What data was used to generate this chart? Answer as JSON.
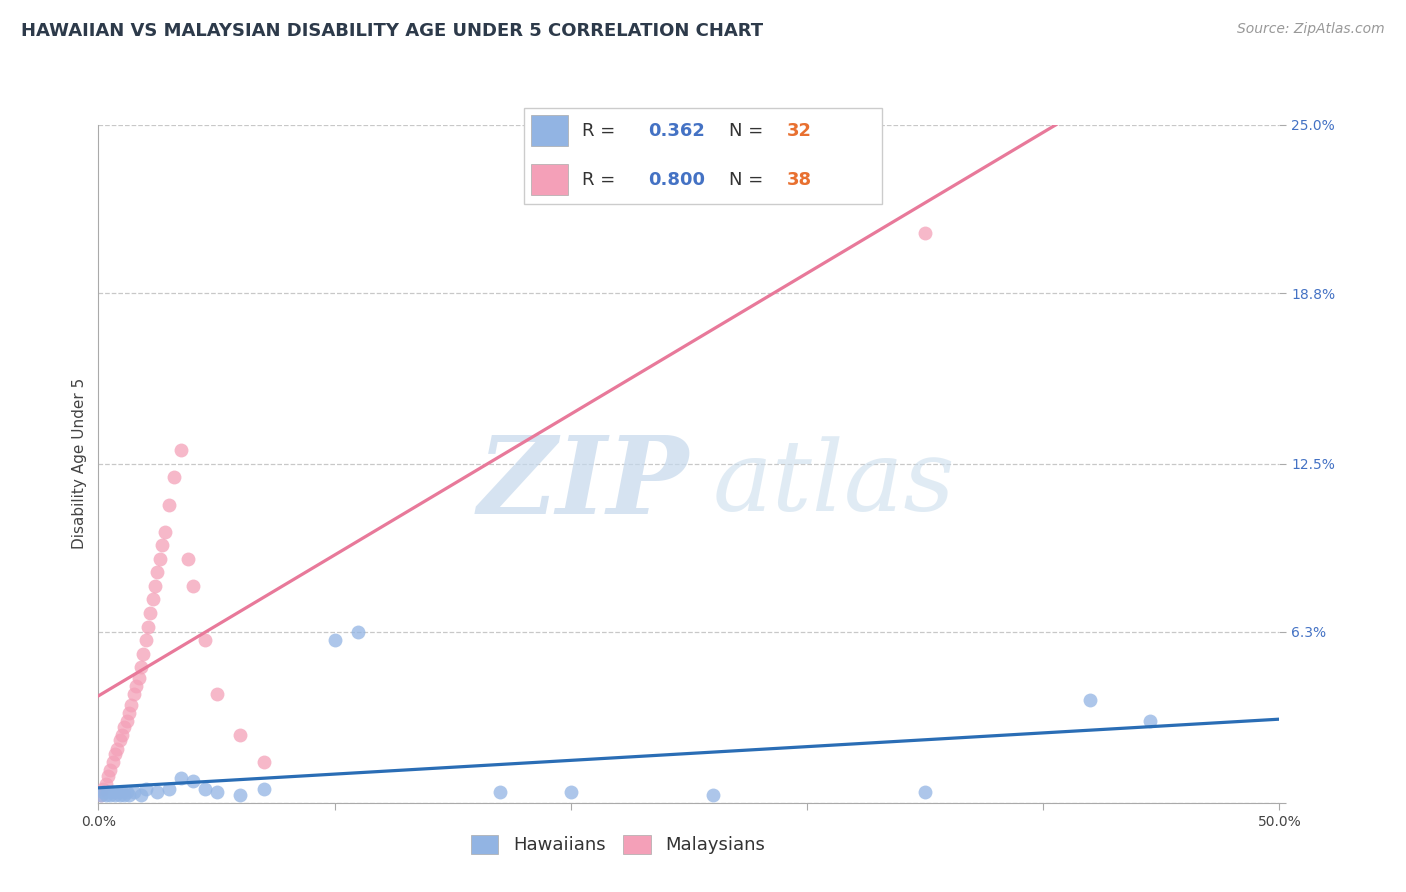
{
  "title": "HAWAIIAN VS MALAYSIAN DISABILITY AGE UNDER 5 CORRELATION CHART",
  "source": "Source: ZipAtlas.com",
  "ylabel": "Disability Age Under 5",
  "xlim": [
    0.0,
    0.5
  ],
  "ylim": [
    0.0,
    0.25
  ],
  "xtick_vals": [
    0.0,
    0.1,
    0.2,
    0.3,
    0.4,
    0.5
  ],
  "xtick_labels": [
    "0.0%",
    "",
    "",
    "",
    "",
    "50.0%"
  ],
  "ytick_vals": [
    0.0,
    0.063,
    0.125,
    0.188,
    0.25
  ],
  "ytick_labels": [
    "",
    "6.3%",
    "12.5%",
    "18.8%",
    "25.0%"
  ],
  "hawaiian_R": 0.362,
  "hawaiian_N": 32,
  "malaysian_R": 0.8,
  "malaysian_N": 38,
  "hawaiian_color": "#92b4e3",
  "malaysian_color": "#f4a0b8",
  "hawaiian_line_color": "#2a6db5",
  "malaysian_line_color": "#e8799a",
  "bg_color": "#ffffff",
  "grid_color": "#c8c8c8",
  "watermark_zip_color": "#c8dff0",
  "watermark_atlas_color": "#c8ddf0",
  "title_color": "#2d3a4a",
  "source_color": "#999999",
  "ytick_color": "#4472c4",
  "xtick_color": "#444444",
  "ylabel_color": "#444444",
  "legend_R_color": "#4472c4",
  "legend_N_color": "#e87030",
  "legend_label_color": "#333333",
  "hawaiian_x": [
    0.001,
    0.002,
    0.003,
    0.004,
    0.005,
    0.006,
    0.007,
    0.008,
    0.009,
    0.01,
    0.011,
    0.012,
    0.013,
    0.015,
    0.018,
    0.02,
    0.025,
    0.03,
    0.035,
    0.04,
    0.045,
    0.05,
    0.06,
    0.07,
    0.1,
    0.11,
    0.17,
    0.2,
    0.26,
    0.35,
    0.42,
    0.445
  ],
  "hawaiian_y": [
    0.003,
    0.004,
    0.003,
    0.004,
    0.003,
    0.004,
    0.003,
    0.004,
    0.003,
    0.004,
    0.003,
    0.004,
    0.003,
    0.004,
    0.003,
    0.005,
    0.004,
    0.005,
    0.009,
    0.008,
    0.005,
    0.004,
    0.003,
    0.005,
    0.06,
    0.063,
    0.004,
    0.004,
    0.003,
    0.004,
    0.038,
    0.03
  ],
  "malaysian_x": [
    0.001,
    0.002,
    0.003,
    0.004,
    0.005,
    0.006,
    0.007,
    0.008,
    0.009,
    0.01,
    0.011,
    0.012,
    0.013,
    0.014,
    0.015,
    0.016,
    0.017,
    0.018,
    0.019,
    0.02,
    0.021,
    0.022,
    0.023,
    0.024,
    0.025,
    0.026,
    0.027,
    0.028,
    0.03,
    0.032,
    0.035,
    0.038,
    0.04,
    0.045,
    0.05,
    0.06,
    0.07,
    0.35
  ],
  "malaysian_y": [
    0.003,
    0.005,
    0.007,
    0.01,
    0.012,
    0.015,
    0.018,
    0.02,
    0.023,
    0.025,
    0.028,
    0.03,
    0.033,
    0.036,
    0.04,
    0.043,
    0.046,
    0.05,
    0.055,
    0.06,
    0.065,
    0.07,
    0.075,
    0.08,
    0.085,
    0.09,
    0.095,
    0.1,
    0.11,
    0.12,
    0.13,
    0.09,
    0.08,
    0.06,
    0.04,
    0.025,
    0.015,
    0.21
  ],
  "title_fontsize": 13,
  "ylabel_fontsize": 11,
  "tick_fontsize": 10,
  "legend_fontsize": 13,
  "source_fontsize": 10
}
